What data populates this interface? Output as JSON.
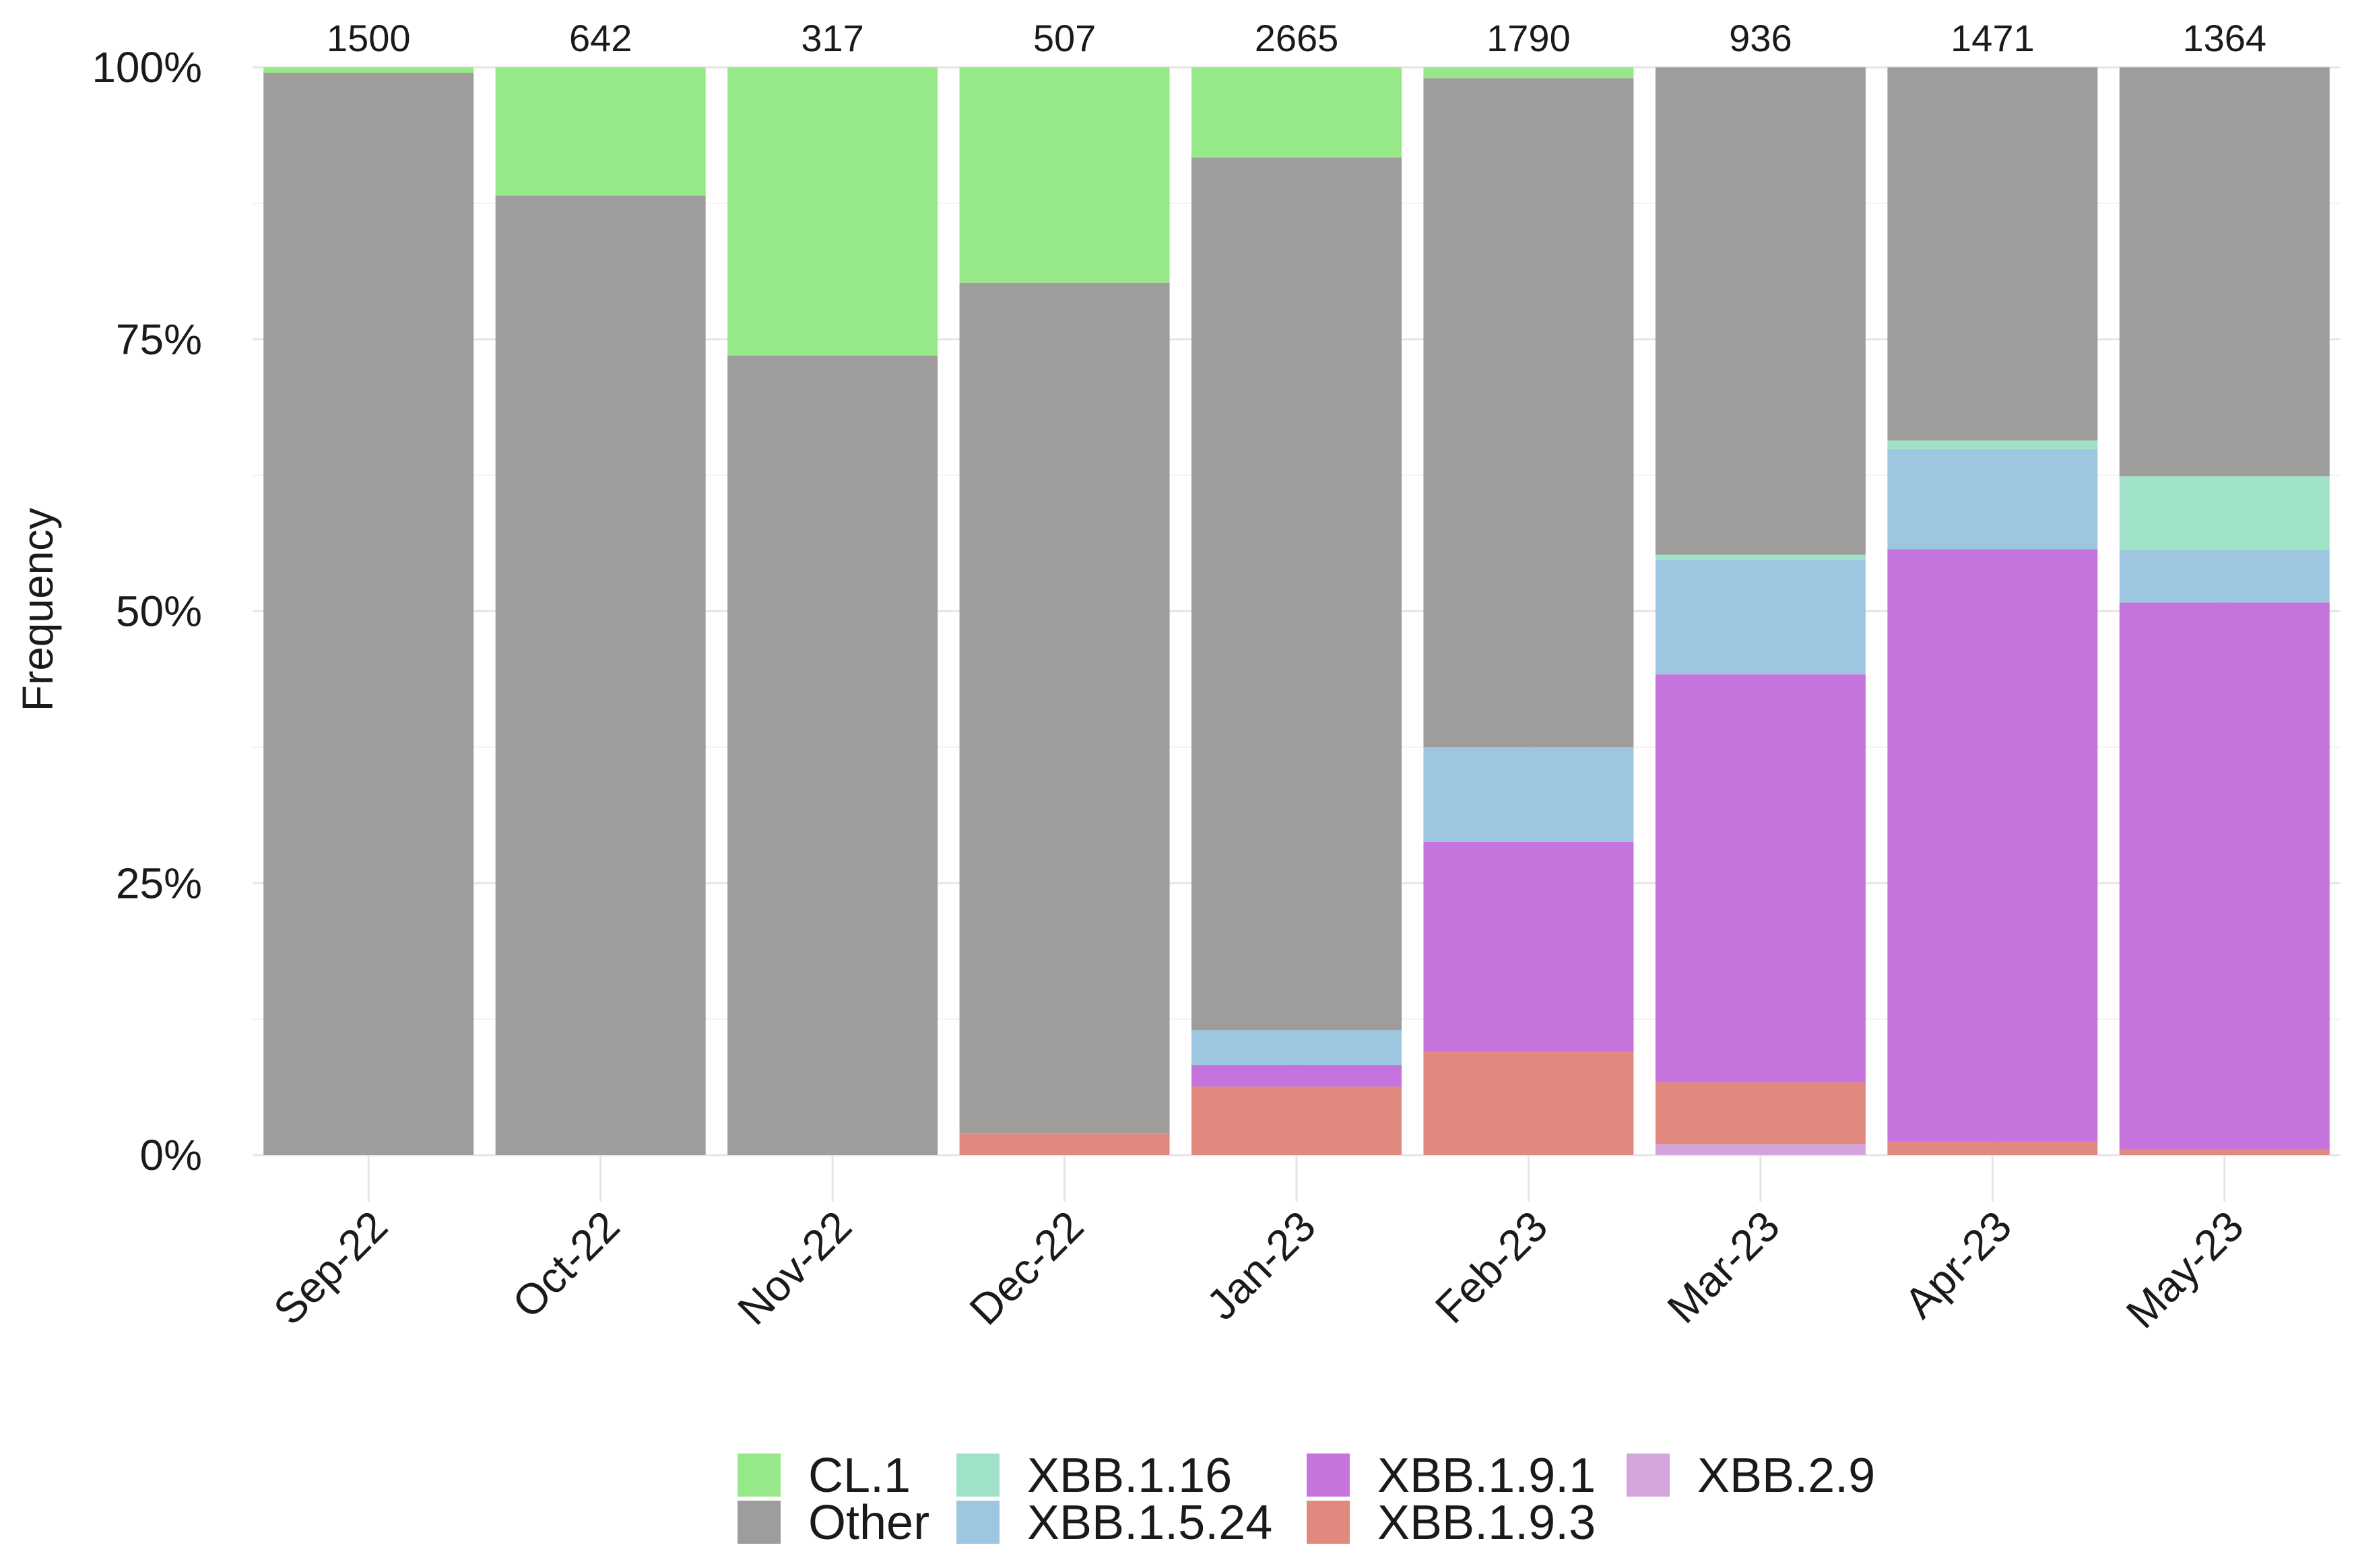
{
  "chart_data": {
    "type": "bar",
    "stacked": true,
    "title": "",
    "xlabel": "",
    "ylabel": "Frequency",
    "ylim": [
      0,
      1
    ],
    "y_ticks": [
      {
        "value": 0,
        "label": "0%"
      },
      {
        "value": 0.25,
        "label": "25%"
      },
      {
        "value": 0.5,
        "label": "50%"
      },
      {
        "value": 0.75,
        "label": "75%"
      },
      {
        "value": 1,
        "label": "100%"
      }
    ],
    "categories": [
      "Sep-22",
      "Oct-22",
      "Nov-22",
      "Dec-22",
      "Jan-23",
      "Feb-23",
      "Mar-23",
      "Apr-23",
      "May-23"
    ],
    "counts": [
      "1500",
      "642",
      "317",
      "507",
      "2665",
      "1790",
      "936",
      "1471",
      "1364"
    ],
    "stack_order_bottom_to_top": [
      "XBB.2.9",
      "XBB.1.9.3",
      "XBB.1.9.1",
      "XBB.1.5.24",
      "XBB.1.16",
      "Other",
      "CL.1"
    ],
    "series": [
      {
        "name": "XBB.2.9",
        "color": "#d4a5dc",
        "values": [
          0,
          0,
          0,
          0,
          0,
          0,
          0.01,
          0,
          0
        ]
      },
      {
        "name": "XBB.1.9.3",
        "color": "#e2897f",
        "values": [
          0,
          0,
          0,
          0.02,
          0.063,
          0.095,
          0.057,
          0.012,
          0.005
        ]
      },
      {
        "name": "XBB.1.9.1",
        "color": "#c674dd",
        "values": [
          0,
          0,
          0,
          0,
          0.02,
          0.193,
          0.375,
          0.545,
          0.503
        ]
      },
      {
        "name": "XBB.1.5.24",
        "color": "#9dc6e0",
        "values": [
          0,
          0,
          0,
          0,
          0.032,
          0.087,
          0.105,
          0.092,
          0.048
        ]
      },
      {
        "name": "XBB.1.16",
        "color": "#9fe2c8",
        "values": [
          0,
          0,
          0,
          0,
          0,
          0,
          0.005,
          0.008,
          0.068
        ]
      },
      {
        "name": "Other",
        "color": "#9e9d9b",
        "values": [
          0.995,
          0.882,
          0.735,
          0.782,
          0.802,
          0.615,
          0.448,
          0.343,
          0.376
        ]
      },
      {
        "name": "CL.1",
        "color": "#97e888",
        "values": [
          0.005,
          0.118,
          0.265,
          0.198,
          0.083,
          0.01,
          0,
          0,
          0
        ]
      }
    ],
    "legend": {
      "placement": "bottom",
      "entries": [
        {
          "name": "CL.1",
          "color": "#97e888"
        },
        {
          "name": "Other",
          "color": "#9e9d9b"
        },
        {
          "name": "XBB.1.16",
          "color": "#9fe2c8"
        },
        {
          "name": "XBB.1.5.24",
          "color": "#9dc6e0"
        },
        {
          "name": "XBB.1.9.1",
          "color": "#c674dd"
        },
        {
          "name": "XBB.1.9.3",
          "color": "#e2897f"
        },
        {
          "name": "XBB.2.9",
          "color": "#d4a5dc"
        }
      ]
    },
    "grid": true
  }
}
